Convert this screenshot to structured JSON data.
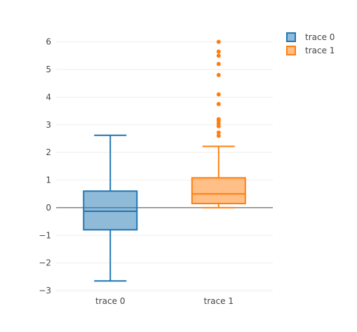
{
  "chart_data": {
    "type": "box",
    "title": "",
    "xlabel": "",
    "ylabel": "",
    "ylim": [
      -3,
      6.5
    ],
    "y_ticks": [
      -3,
      -2,
      -1,
      0,
      1,
      2,
      3,
      4,
      5,
      6
    ],
    "y_tick_labels": [
      "−3",
      "−2",
      "−1",
      "0",
      "1",
      "2",
      "3",
      "4",
      "5",
      "6"
    ],
    "categories": [
      "trace 0",
      "trace 1"
    ],
    "grid": true,
    "zero_line": true,
    "legend_position": "top-right",
    "series": [
      {
        "name": "trace 0",
        "color": "#1f77b4",
        "min": -2.65,
        "q1": -0.8,
        "median": -0.13,
        "q3": 0.6,
        "max": 2.62,
        "outliers": []
      },
      {
        "name": "trace 1",
        "color": "#ff7f0e",
        "min": 0.0,
        "q1": 0.15,
        "median": 0.5,
        "q3": 1.08,
        "max": 2.22,
        "outliers": [
          2.6,
          2.72,
          2.95,
          3.05,
          3.15,
          3.2,
          3.75,
          4.1,
          4.8,
          5.2,
          5.5,
          5.65,
          6.0
        ]
      }
    ]
  }
}
